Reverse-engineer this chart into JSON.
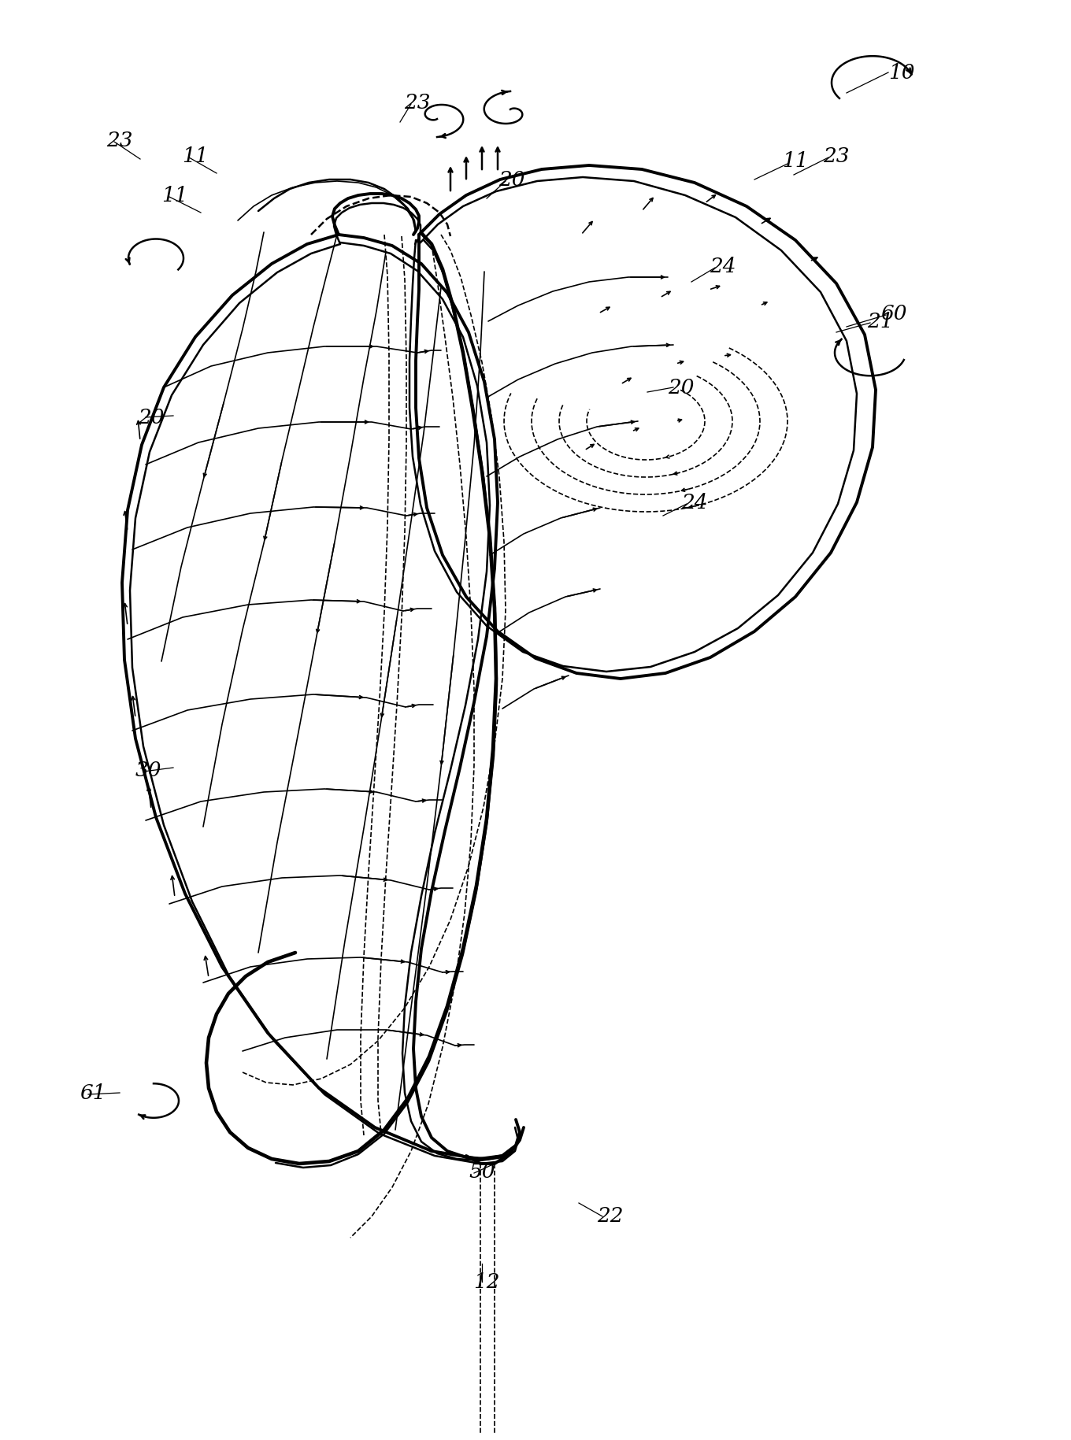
{
  "bg_color": "#ffffff",
  "line_color": "#000000",
  "fig_width": 13.6,
  "fig_height": 18.29,
  "lw_thick": 2.8,
  "lw_med": 1.8,
  "lw_thin": 1.2,
  "label_fs": 19,
  "labels": [
    [
      "10",
      1145,
      92
    ],
    [
      "11",
      248,
      198
    ],
    [
      "11",
      1010,
      205
    ],
    [
      "11",
      222,
      248
    ],
    [
      "20",
      192,
      530
    ],
    [
      "20",
      650,
      228
    ],
    [
      "20",
      865,
      492
    ],
    [
      "21",
      1118,
      408
    ],
    [
      "22",
      775,
      1545
    ],
    [
      "23",
      530,
      130
    ],
    [
      "23",
      152,
      178
    ],
    [
      "23",
      1062,
      198
    ],
    [
      "24",
      918,
      338
    ],
    [
      "24",
      882,
      638
    ],
    [
      "30",
      188,
      978
    ],
    [
      "50",
      612,
      1488
    ],
    [
      "60",
      1135,
      398
    ],
    [
      "61",
      118,
      1388
    ],
    [
      "12",
      618,
      1628
    ]
  ]
}
